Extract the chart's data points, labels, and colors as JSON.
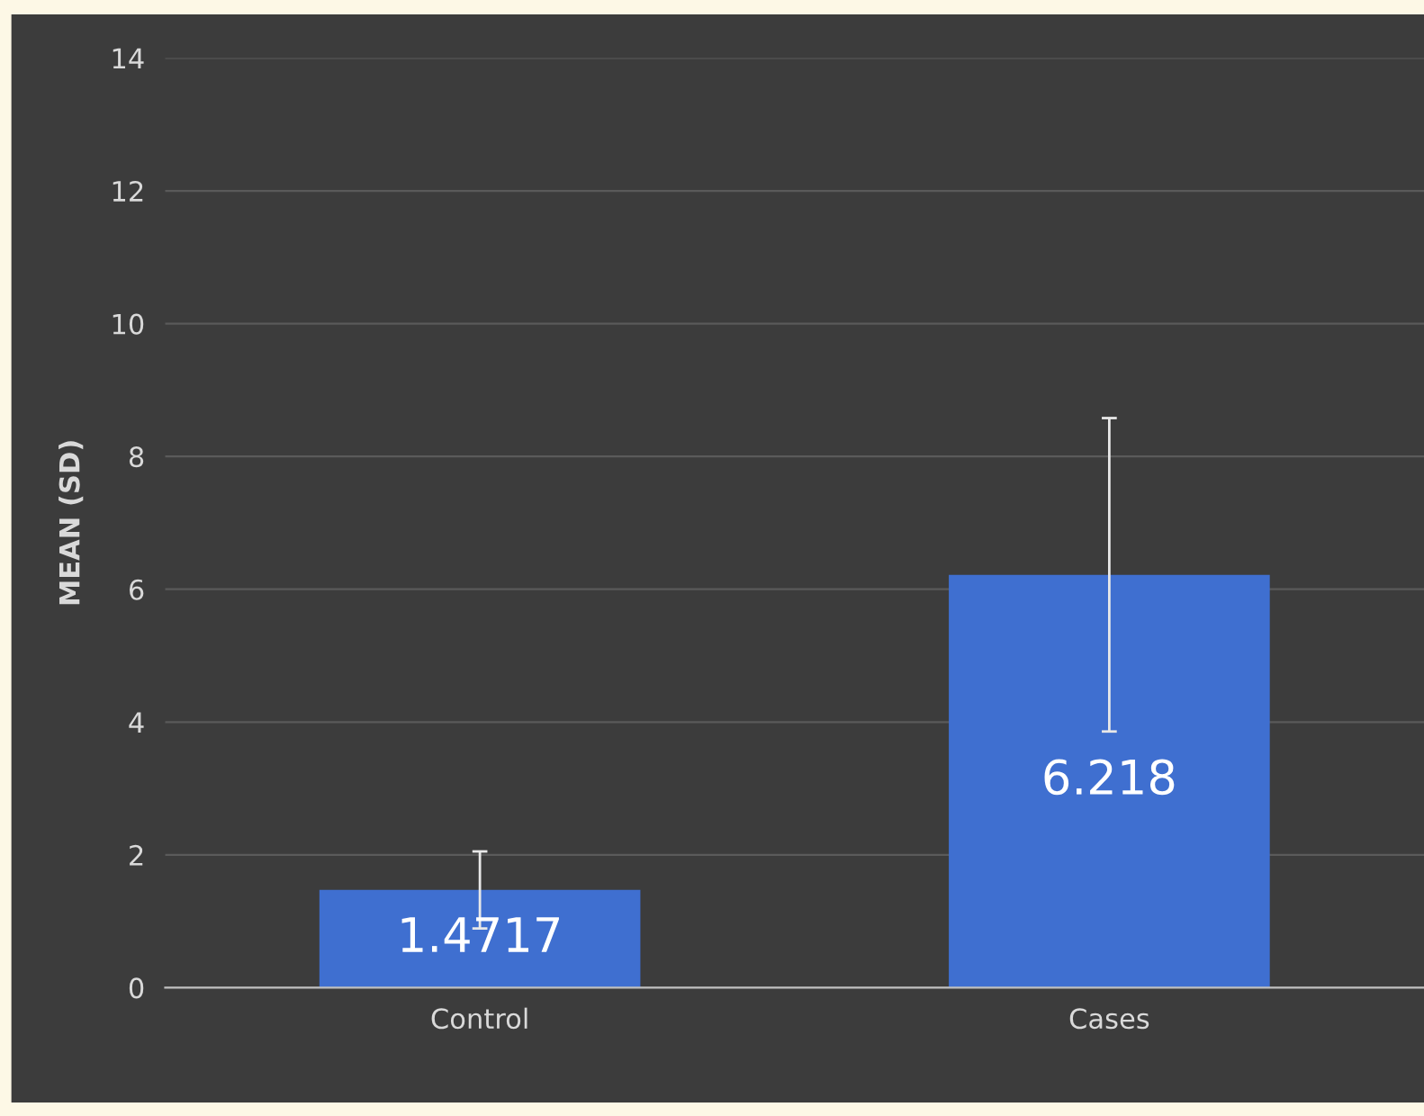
{
  "chart_data": {
    "type": "bar",
    "ylabel": "MEAN (SD)",
    "categories": [
      "Control",
      "Cases"
    ],
    "values": [
      1.4717,
      6.218
    ],
    "errors": [
      0.58,
      2.36
    ],
    "color": "#3f6fd0",
    "data_labels": true,
    "ylim": [
      0,
      14
    ],
    "yticks": [
      0,
      2,
      4,
      6,
      8,
      10,
      12,
      14
    ],
    "grid": "y",
    "legend": false
  }
}
